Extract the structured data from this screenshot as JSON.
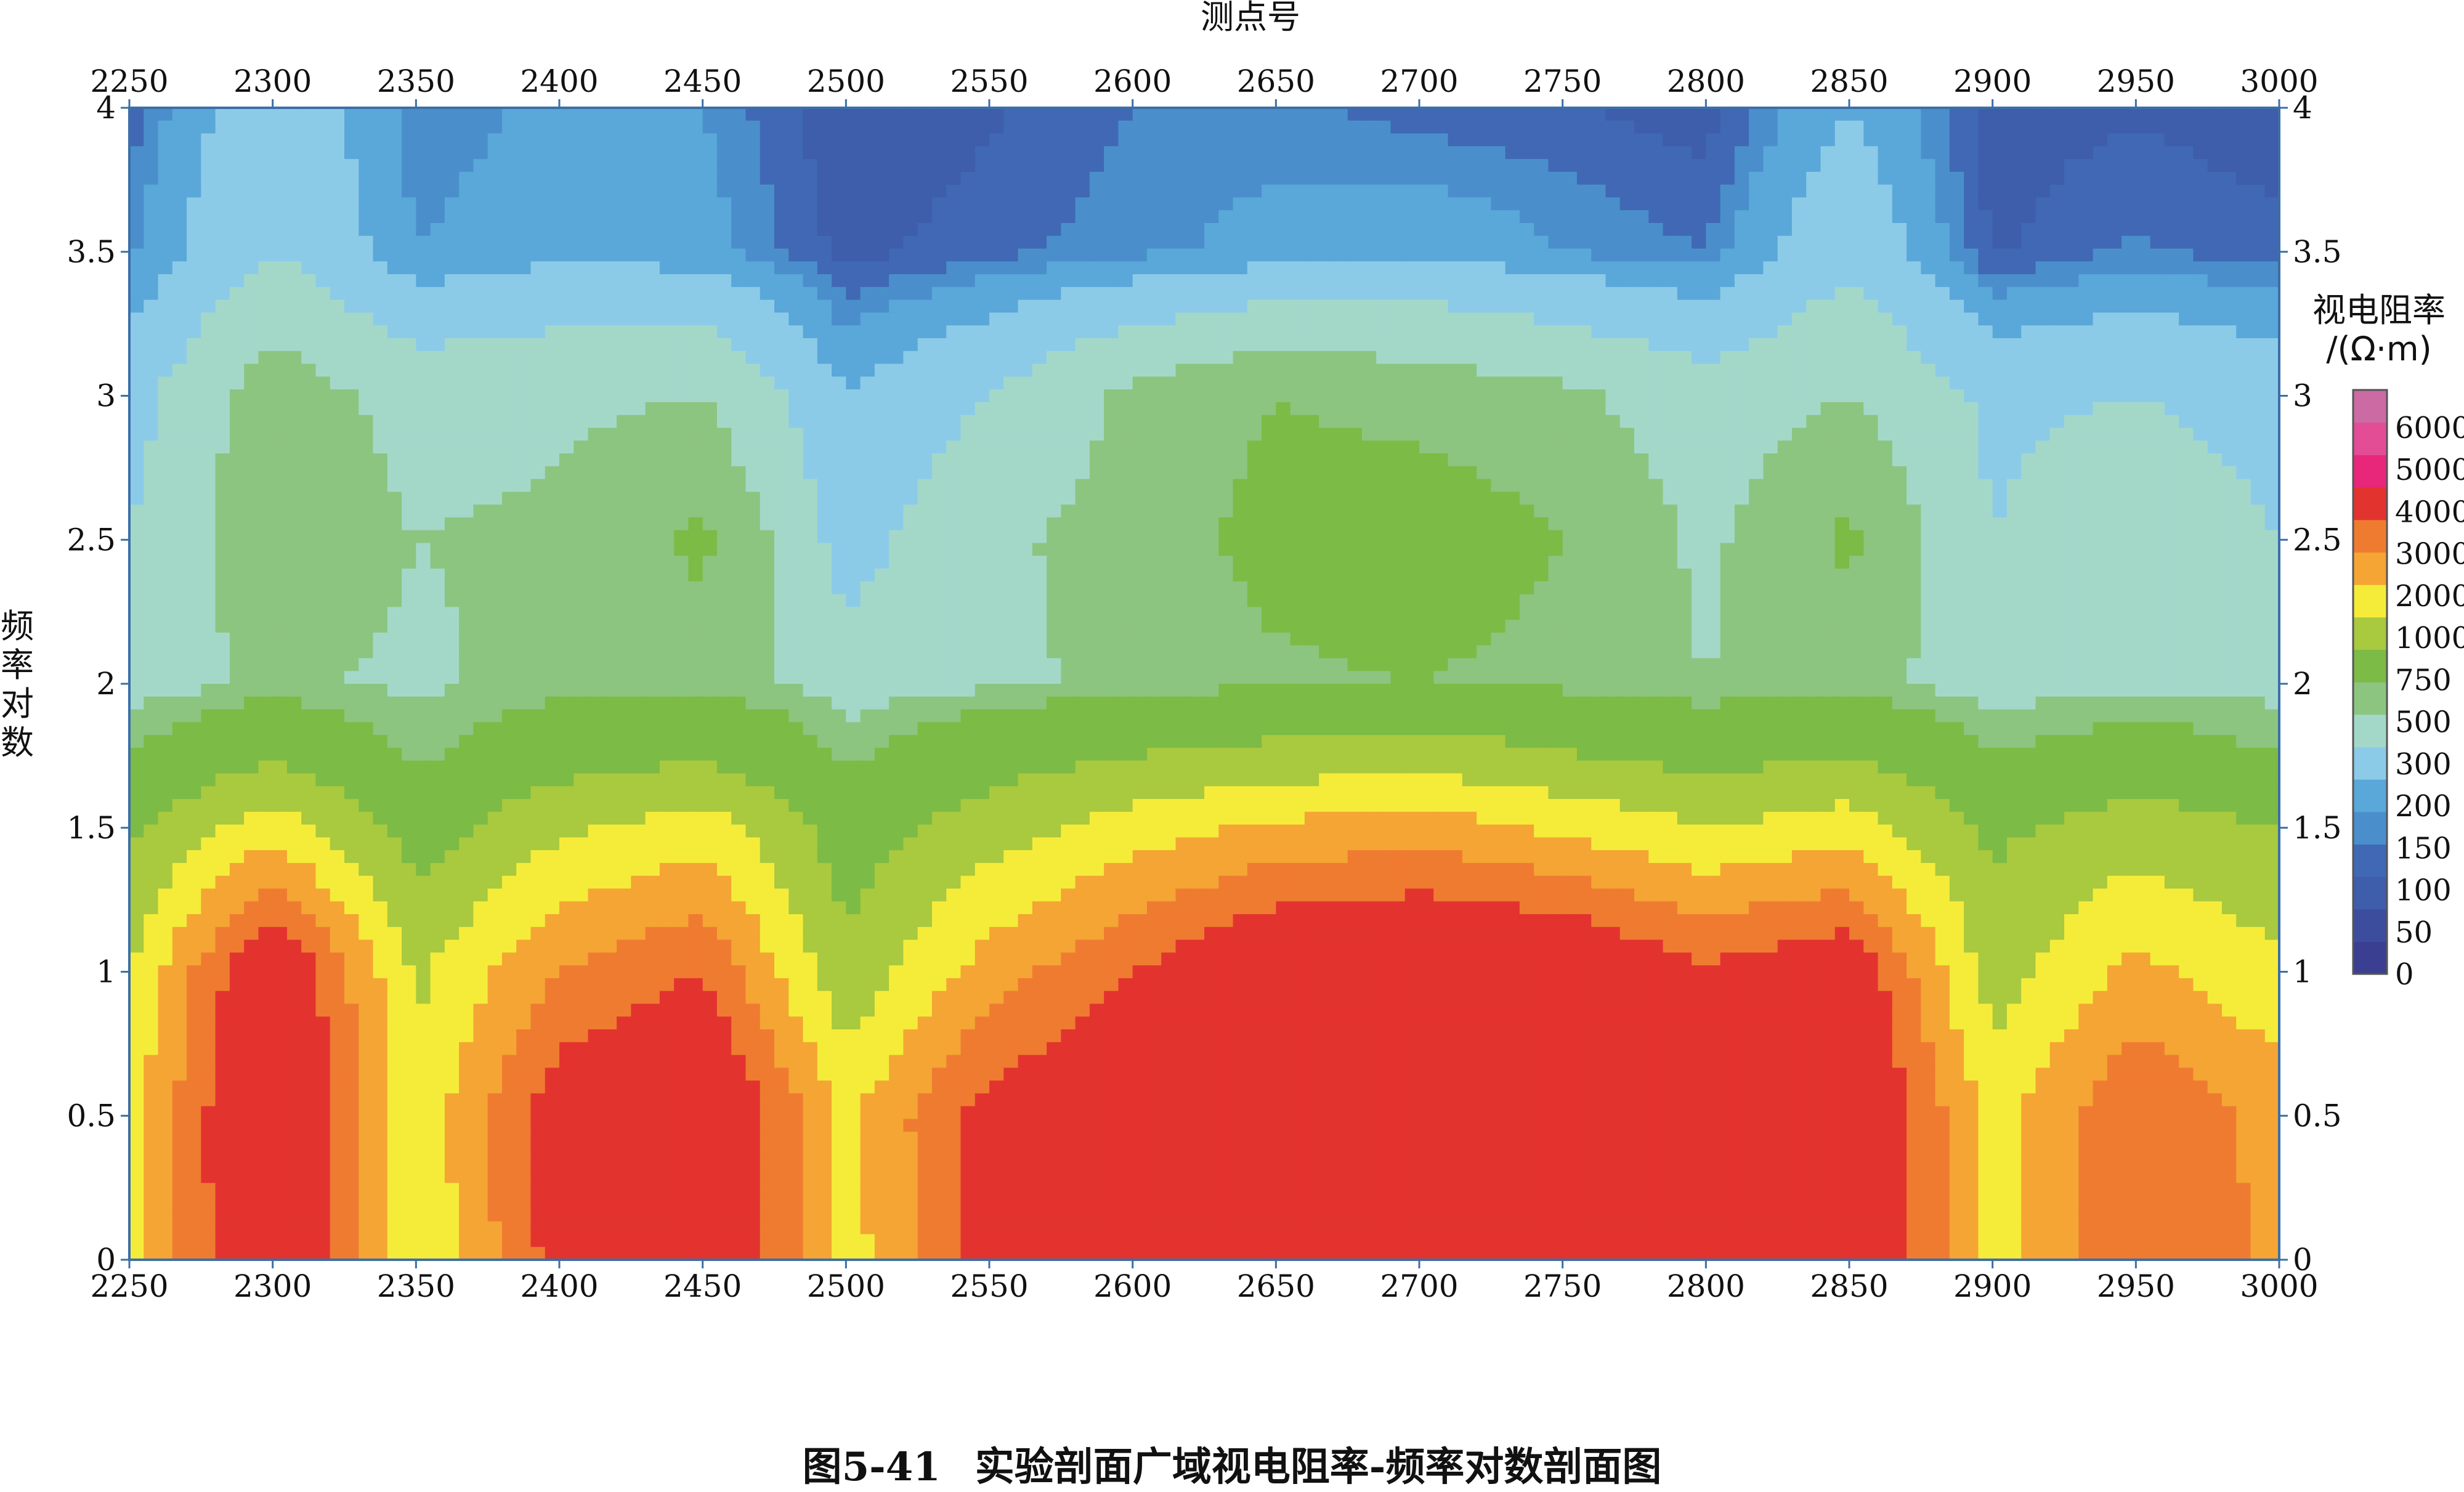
{
  "caption": {
    "number": "图5-41",
    "text": "实验剖面广域视电阻率-频率对数剖面图"
  },
  "chart_data": {
    "type": "heatmap",
    "title": "",
    "xlabel": "测点号",
    "ylabel": "频率对数",
    "xlim": [
      2250,
      3000
    ],
    "ylim": [
      0,
      4
    ],
    "x_ticks": [
      2250,
      2300,
      2350,
      2400,
      2450,
      2500,
      2550,
      2600,
      2650,
      2700,
      2750,
      2800,
      2850,
      2900,
      2950,
      3000
    ],
    "y_ticks": [
      0,
      0.5,
      1,
      1.5,
      2,
      2.5,
      3,
      3.5,
      4
    ],
    "colorbar": {
      "title_line1": "视电阻率",
      "title_line2": "/(Ω·m)",
      "levels": [
        0,
        50,
        100,
        150,
        200,
        300,
        500,
        750,
        1000,
        2000,
        3000,
        4000,
        5000,
        6000
      ],
      "colors": [
        "#3a3f91",
        "#3c4d9d",
        "#3e5daa",
        "#4068b4",
        "#4a8fcb",
        "#5aa7d9",
        "#8ccbe8",
        "#a3d8c9",
        "#8cc580",
        "#7cbb45",
        "#a9c93e",
        "#f5ec3a",
        "#f4a534",
        "#ef7b31",
        "#e3332f",
        "#e8267a",
        "#e24d96",
        "#cc6aa4"
      ]
    },
    "x": [
      2250,
      2300,
      2350,
      2400,
      2450,
      2500,
      2550,
      2600,
      2650,
      2700,
      2750,
      2800,
      2850,
      2900,
      2950,
      3000
    ],
    "y": [
      0,
      0.5,
      1.0,
      1.5,
      1.75,
      2.0,
      2.5,
      3.0,
      3.5,
      4.0
    ],
    "values": [
      [
        3500,
        8000,
        3000,
        6500,
        7800,
        3500,
        6500,
        7500,
        7800,
        7800,
        7800,
        7500,
        7800,
        3500,
        5800,
        4800
      ],
      [
        3600,
        8000,
        3200,
        6800,
        7800,
        3800,
        6500,
        7500,
        7800,
        7800,
        7800,
        7500,
        7800,
        3600,
        6000,
        4600
      ],
      [
        3000,
        7500,
        2800,
        5000,
        6000,
        2200,
        4500,
        6000,
        7500,
        7800,
        7500,
        6200,
        7000,
        2500,
        4300,
        3200
      ],
      [
        1800,
        3600,
        1500,
        2800,
        3500,
        1500,
        2500,
        3500,
        4200,
        4500,
        3800,
        3000,
        3500,
        1800,
        2500,
        2000
      ],
      [
        1000,
        1800,
        900,
        1500,
        1900,
        900,
        1500,
        2000,
        2300,
        2500,
        2100,
        1600,
        2000,
        1000,
        1300,
        1000
      ],
      [
        600,
        800,
        700,
        850,
        900,
        600,
        700,
        800,
        950,
        1000,
        900,
        750,
        850,
        600,
        700,
        650
      ],
      [
        500,
        950,
        750,
        800,
        1050,
        400,
        700,
        850,
        1100,
        1200,
        1000,
        700,
        1050,
        500,
        700,
        500
      ],
      [
        400,
        900,
        650,
        700,
        750,
        300,
        500,
        800,
        1000,
        900,
        800,
        600,
        750,
        450,
        500,
        400
      ],
      [
        180,
        500,
        200,
        260,
        240,
        80,
        130,
        180,
        230,
        280,
        200,
        150,
        450,
        90,
        160,
        120
      ],
      [
        120,
        420,
        160,
        220,
        200,
        50,
        90,
        150,
        170,
        120,
        110,
        70,
        300,
        70,
        90,
        60
      ]
    ]
  }
}
